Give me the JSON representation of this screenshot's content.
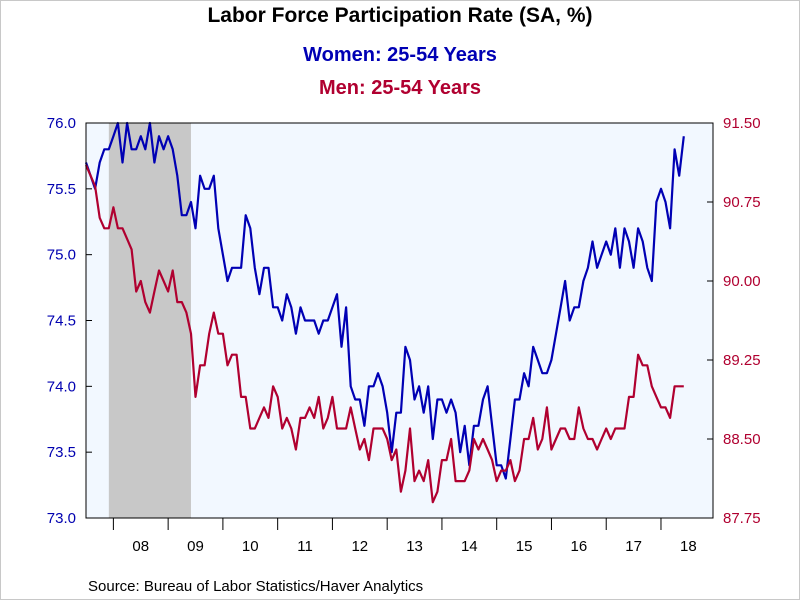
{
  "chart_data": {
    "type": "line",
    "title": "Labor Force Participation Rate (SA, %)",
    "x_ticks": [
      "08",
      "09",
      "10",
      "11",
      "12",
      "13",
      "14",
      "15",
      "16",
      "17",
      "18"
    ],
    "x_range": [
      2007.5,
      2018.95
    ],
    "recession_shading": {
      "start": 2007.917,
      "end": 2009.417,
      "color": "#c8c8c8"
    },
    "plot_background": "#f2f8ff",
    "left_axis": {
      "ylim": [
        73.0,
        76.0
      ],
      "ticks": [
        "73.0",
        "73.5",
        "74.0",
        "74.5",
        "75.0",
        "75.5",
        "76.0"
      ],
      "color": "#0000b0"
    },
    "right_axis": {
      "ylim": [
        87.75,
        91.5
      ],
      "ticks": [
        "87.75",
        "88.50",
        "89.25",
        "90.00",
        "90.75",
        "91.50"
      ],
      "color": "#b00030"
    },
    "series": [
      {
        "name": "Women: 25-54 Years",
        "axis": "left",
        "color": "#0000b4",
        "x_start": 2007.5,
        "step": 0.08333,
        "values": [
          75.7,
          75.6,
          75.5,
          75.7,
          75.8,
          75.8,
          75.9,
          76.0,
          75.7,
          76.0,
          75.8,
          75.8,
          75.9,
          75.8,
          76.0,
          75.7,
          75.9,
          75.8,
          75.9,
          75.8,
          75.6,
          75.3,
          75.3,
          75.4,
          75.2,
          75.6,
          75.5,
          75.5,
          75.6,
          75.2,
          75.0,
          74.8,
          74.9,
          74.9,
          74.9,
          75.3,
          75.2,
          74.9,
          74.7,
          74.9,
          74.9,
          74.6,
          74.6,
          74.5,
          74.7,
          74.6,
          74.4,
          74.6,
          74.5,
          74.5,
          74.5,
          74.4,
          74.5,
          74.5,
          74.6,
          74.7,
          74.3,
          74.6,
          74.0,
          73.9,
          73.9,
          73.7,
          74.0,
          74.0,
          74.1,
          74.0,
          73.8,
          73.5,
          73.8,
          73.8,
          74.3,
          74.2,
          73.9,
          74.0,
          73.8,
          74.0,
          73.6,
          73.9,
          73.9,
          73.8,
          73.9,
          73.8,
          73.5,
          73.7,
          73.4,
          73.7,
          73.7,
          73.9,
          74.0,
          73.7,
          73.4,
          73.4,
          73.3,
          73.6,
          73.9,
          73.9,
          74.1,
          74.0,
          74.3,
          74.2,
          74.1,
          74.1,
          74.2,
          74.4,
          74.6,
          74.8,
          74.5,
          74.6,
          74.6,
          74.8,
          74.9,
          75.1,
          74.9,
          75.0,
          75.1,
          75.0,
          75.2,
          74.9,
          75.2,
          75.1,
          74.9,
          75.2,
          75.1,
          74.9,
          74.8,
          75.4,
          75.5,
          75.4,
          75.2,
          75.8,
          75.6,
          75.9
        ]
      },
      {
        "name": "Men: 25-54 Years",
        "axis": "right",
        "color": "#b00030",
        "x_start": 2007.5,
        "step": 0.08333,
        "values": [
          91.1,
          91.0,
          90.9,
          90.6,
          90.5,
          90.5,
          90.7,
          90.5,
          90.5,
          90.4,
          90.3,
          89.9,
          90.0,
          89.8,
          89.7,
          89.9,
          90.1,
          90.0,
          89.9,
          90.1,
          89.8,
          89.8,
          89.7,
          89.5,
          88.9,
          89.2,
          89.2,
          89.5,
          89.7,
          89.5,
          89.5,
          89.2,
          89.3,
          89.3,
          88.9,
          88.9,
          88.6,
          88.6,
          88.7,
          88.8,
          88.7,
          89.0,
          88.9,
          88.6,
          88.7,
          88.6,
          88.4,
          88.7,
          88.7,
          88.8,
          88.7,
          88.9,
          88.6,
          88.7,
          88.9,
          88.6,
          88.6,
          88.6,
          88.8,
          88.6,
          88.4,
          88.5,
          88.3,
          88.6,
          88.6,
          88.6,
          88.5,
          88.3,
          88.4,
          88.0,
          88.2,
          88.6,
          88.1,
          88.2,
          88.1,
          88.3,
          87.9,
          88.0,
          88.3,
          88.3,
          88.5,
          88.1,
          88.1,
          88.1,
          88.2,
          88.5,
          88.4,
          88.5,
          88.4,
          88.3,
          88.1,
          88.2,
          88.2,
          88.3,
          88.1,
          88.2,
          88.5,
          88.5,
          88.7,
          88.4,
          88.5,
          88.8,
          88.4,
          88.5,
          88.6,
          88.6,
          88.5,
          88.5,
          88.8,
          88.6,
          88.5,
          88.5,
          88.4,
          88.5,
          88.6,
          88.5,
          88.6,
          88.6,
          88.6,
          88.9,
          88.9,
          89.3,
          89.2,
          89.2,
          89.0,
          88.9,
          88.8,
          88.8,
          88.7,
          89.0,
          89.0,
          89.0
        ]
      }
    ]
  },
  "source_text": "Source:  Bureau of Labor Statistics/Haver Analytics"
}
